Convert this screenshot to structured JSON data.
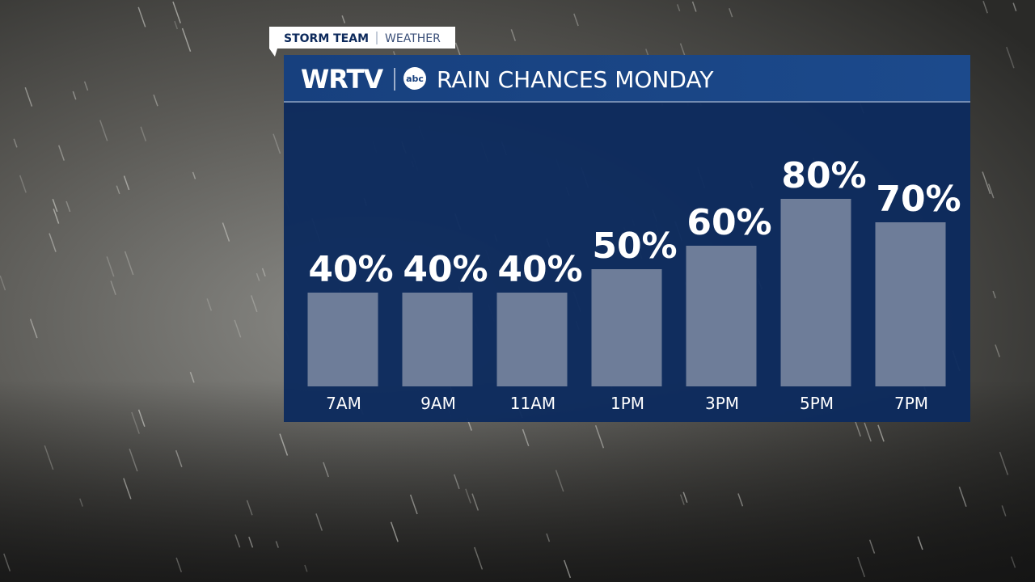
{
  "header": {
    "tag": "STORM TEAM",
    "section": "WEATHER",
    "station": "WRTV",
    "network": "abc"
  },
  "chart_data": {
    "type": "bar",
    "title": "RAIN CHANCES MONDAY",
    "categories": [
      "7AM",
      "9AM",
      "11AM",
      "1PM",
      "3PM",
      "5PM",
      "7PM"
    ],
    "values": [
      40,
      40,
      40,
      50,
      60,
      80,
      70
    ],
    "value_labels": [
      "40%",
      "40%",
      "40%",
      "50%",
      "60%",
      "80%",
      "70%"
    ],
    "color": "#6e7d99"
  }
}
